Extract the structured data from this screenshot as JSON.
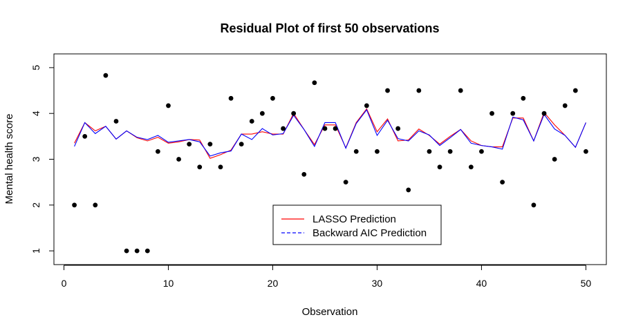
{
  "chart_data": {
    "type": "scatter",
    "title": "Residual Plot of first 50 observations",
    "xlabel": "Observation",
    "ylabel": "Mental health score",
    "xlim": [
      -0.96,
      51.96
    ],
    "ylim": [
      0.7,
      5.3
    ],
    "xticks": [
      0,
      10,
      20,
      30,
      40,
      50
    ],
    "yticks": [
      1,
      2,
      3,
      4,
      5
    ],
    "grid": false,
    "legend_position": "bottom-center",
    "x": [
      1,
      2,
      3,
      4,
      5,
      6,
      7,
      8,
      9,
      10,
      11,
      12,
      13,
      14,
      15,
      16,
      17,
      18,
      19,
      20,
      21,
      22,
      23,
      24,
      25,
      26,
      27,
      28,
      29,
      30,
      31,
      32,
      33,
      34,
      35,
      36,
      37,
      38,
      39,
      40,
      41,
      42,
      43,
      44,
      45,
      46,
      47,
      48,
      49,
      50
    ],
    "observed": [
      2.0,
      3.5,
      2.0,
      4.83,
      3.83,
      1.0,
      1.0,
      1.0,
      3.17,
      4.17,
      3.0,
      3.33,
      2.83,
      3.33,
      2.83,
      4.33,
      3.33,
      3.83,
      4.0,
      4.33,
      3.67,
      4.0,
      2.67,
      4.67,
      3.67,
      3.67,
      2.5,
      3.17,
      4.17,
      3.17,
      4.5,
      3.67,
      2.33,
      4.5,
      3.17,
      2.83,
      3.17,
      4.5,
      2.83,
      3.17,
      4.0,
      2.5,
      4.0,
      4.33,
      2.0,
      4.0,
      3.0,
      4.17,
      4.5,
      3.17
    ],
    "series": [
      {
        "name": "LASSO Prediction",
        "color": "#ff0000",
        "dash": "solid",
        "values": [
          3.35,
          3.8,
          3.62,
          3.72,
          3.44,
          3.62,
          3.47,
          3.4,
          3.48,
          3.35,
          3.38,
          3.43,
          3.42,
          3.02,
          3.1,
          3.2,
          3.55,
          3.55,
          3.6,
          3.55,
          3.55,
          4.0,
          3.65,
          3.32,
          3.75,
          3.75,
          3.25,
          3.8,
          4.1,
          3.6,
          3.88,
          3.4,
          3.42,
          3.66,
          3.52,
          3.33,
          3.5,
          3.65,
          3.4,
          3.3,
          3.27,
          3.27,
          3.9,
          3.9,
          3.4,
          4.02,
          3.75,
          3.52,
          3.26,
          3.8
        ]
      },
      {
        "name": "Backward AIC Prediction",
        "color": "#0000ff",
        "dash": "dashed",
        "values": [
          3.28,
          3.8,
          3.56,
          3.72,
          3.44,
          3.62,
          3.48,
          3.43,
          3.52,
          3.37,
          3.4,
          3.43,
          3.38,
          3.07,
          3.14,
          3.18,
          3.55,
          3.43,
          3.67,
          3.53,
          3.56,
          3.96,
          3.65,
          3.28,
          3.8,
          3.8,
          3.24,
          3.78,
          4.08,
          3.52,
          3.85,
          3.45,
          3.4,
          3.62,
          3.53,
          3.3,
          3.47,
          3.65,
          3.35,
          3.3,
          3.27,
          3.22,
          3.92,
          3.86,
          3.4,
          3.98,
          3.66,
          3.52,
          3.26,
          3.8
        ]
      }
    ]
  }
}
